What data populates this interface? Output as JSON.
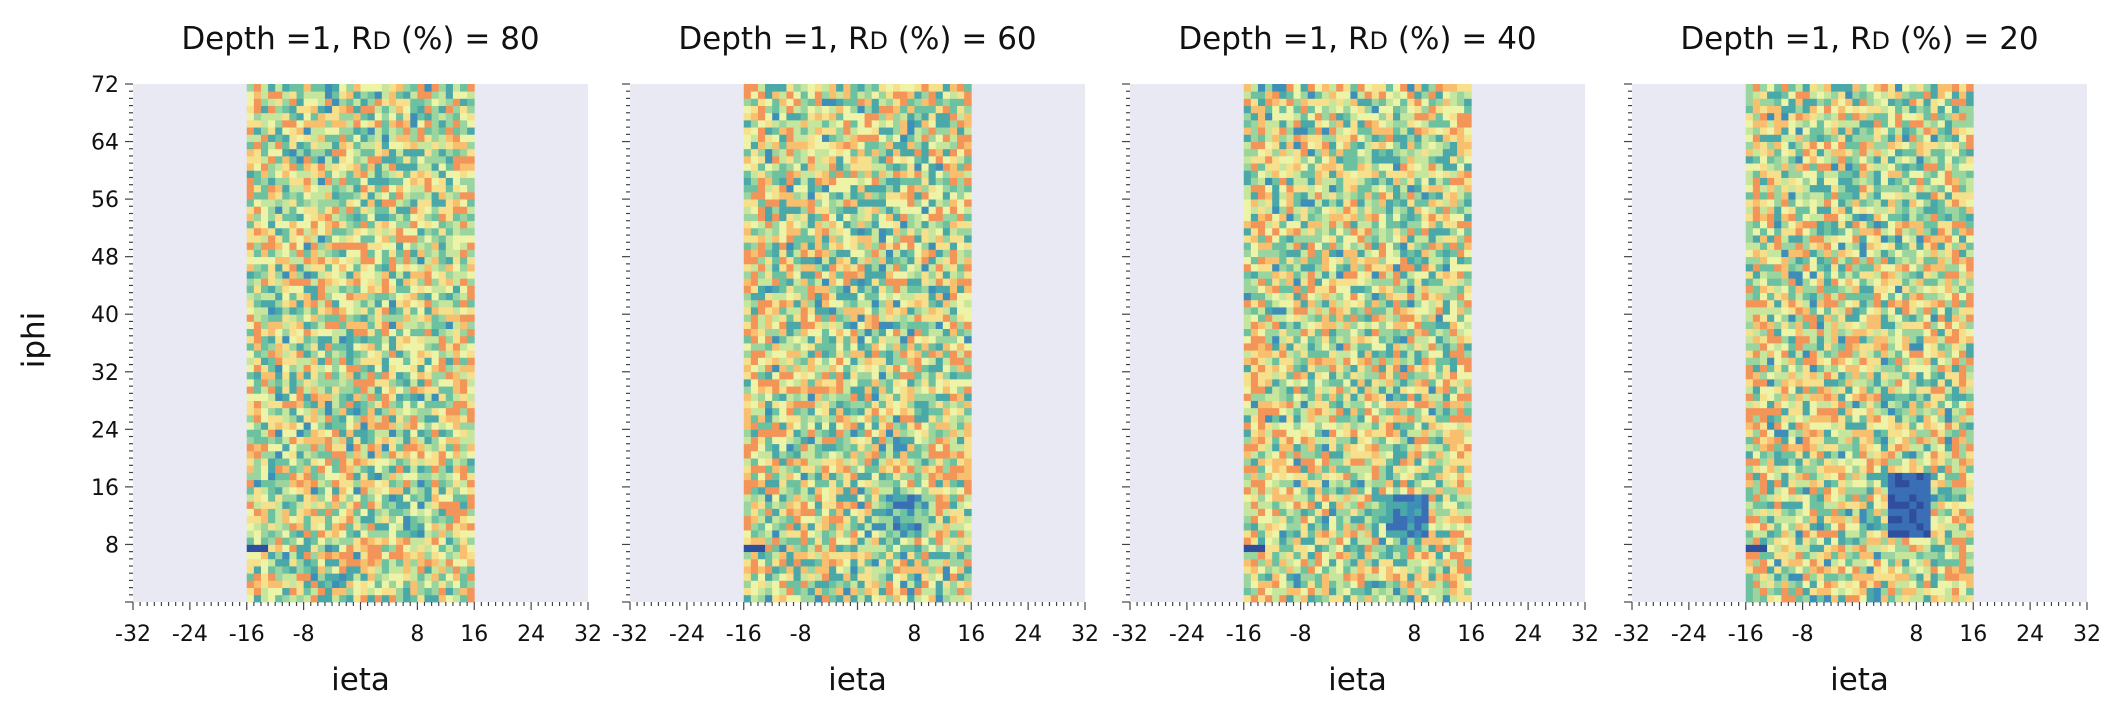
{
  "figure": {
    "ylabel": "iphi"
  },
  "colors": {
    "background": "#ffffff",
    "axes_background": "#e8e9f2",
    "colormap": [
      "#2f4f9e",
      "#3a6fb5",
      "#3e8fb8",
      "#4aa8a8",
      "#6cc1a0",
      "#9ad49f",
      "#c6e69d",
      "#eef4a7",
      "#f6e08c",
      "#f8bf6f",
      "#f39559"
    ]
  },
  "chart_data": [
    {
      "type": "heatmap",
      "title_prefix": "Depth =1, R",
      "title_sub": "D",
      "title_suffix": " (%) = 80",
      "xlabel": "ieta",
      "xlim": [
        -32,
        32
      ],
      "ylim": [
        0,
        72
      ],
      "x_ticks": [
        "-32",
        "-24",
        "-16",
        "-8",
        "8",
        "16",
        "24",
        "32"
      ],
      "y_ticks": [
        "8",
        "16",
        "24",
        "32",
        "40",
        "48",
        "56",
        "64",
        "72"
      ],
      "ieta_range": [
        -16,
        16
      ],
      "iphi_range": [
        1,
        72
      ],
      "dead_region": {
        "ieta": [
          5,
          10
        ],
        "iphi": [
          10,
          15
        ],
        "depletion": 0.2
      },
      "dead_strip": {
        "ieta": [
          -16,
          -14
        ],
        "iphi": [
          8,
          8
        ]
      },
      "seed": 11
    },
    {
      "type": "heatmap",
      "title_prefix": "Depth =1, R",
      "title_sub": "D",
      "title_suffix": " (%) = 60",
      "xlabel": "ieta",
      "xlim": [
        -32,
        32
      ],
      "ylim": [
        0,
        72
      ],
      "x_ticks": [
        "-32",
        "-24",
        "-16",
        "-8",
        "8",
        "16",
        "24",
        "32"
      ],
      "y_ticks": [
        "8",
        "16",
        "24",
        "32",
        "40",
        "48",
        "56",
        "64",
        "72"
      ],
      "ieta_range": [
        -16,
        16
      ],
      "iphi_range": [
        1,
        72
      ],
      "dead_region": {
        "ieta": [
          5,
          10
        ],
        "iphi": [
          10,
          15
        ],
        "depletion": 0.4
      },
      "dead_strip": {
        "ieta": [
          -16,
          -14
        ],
        "iphi": [
          8,
          8
        ]
      },
      "seed": 23
    },
    {
      "type": "heatmap",
      "title_prefix": "Depth =1, R",
      "title_sub": "D",
      "title_suffix": " (%) = 40",
      "xlabel": "ieta",
      "xlim": [
        -32,
        32
      ],
      "ylim": [
        0,
        72
      ],
      "x_ticks": [
        "-32",
        "-24",
        "-16",
        "-8",
        "8",
        "16",
        "24",
        "32"
      ],
      "y_ticks": [
        "8",
        "16",
        "24",
        "32",
        "40",
        "48",
        "56",
        "64",
        "72"
      ],
      "ieta_range": [
        -16,
        16
      ],
      "iphi_range": [
        1,
        72
      ],
      "dead_region": {
        "ieta": [
          5,
          10
        ],
        "iphi": [
          10,
          15
        ],
        "depletion": 0.6
      },
      "dead_strip": {
        "ieta": [
          -16,
          -14
        ],
        "iphi": [
          8,
          8
        ]
      },
      "seed": 37
    },
    {
      "type": "heatmap",
      "title_prefix": "Depth =1, R",
      "title_sub": "D",
      "title_suffix": " (%) = 20",
      "xlabel": "ieta",
      "xlim": [
        -32,
        32
      ],
      "ylim": [
        0,
        72
      ],
      "x_ticks": [
        "-32",
        "-24",
        "-16",
        "-8",
        "8",
        "16",
        "24",
        "32"
      ],
      "y_ticks": [
        "8",
        "16",
        "24",
        "32",
        "40",
        "48",
        "56",
        "64",
        "72"
      ],
      "ieta_range": [
        -16,
        16
      ],
      "iphi_range": [
        1,
        72
      ],
      "dead_region": {
        "ieta": [
          5,
          10
        ],
        "iphi": [
          10,
          18
        ],
        "depletion": 0.8
      },
      "dead_strip": {
        "ieta": [
          -16,
          -14
        ],
        "iphi": [
          8,
          8
        ]
      },
      "seed": 53
    }
  ]
}
